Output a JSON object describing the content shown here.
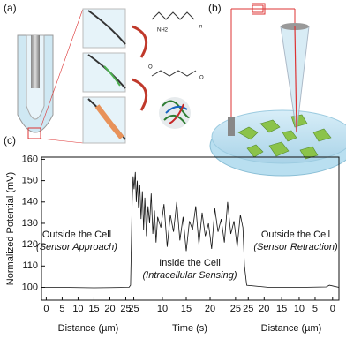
{
  "panels": {
    "a": "(a)",
    "b": "(b)"
  },
  "molecules": {
    "amine": "NH2",
    "repeat": "n",
    "oxygen1": "O",
    "oxygen2": "O"
  },
  "chart_data": {
    "type": "line",
    "panel": "(c)",
    "y_label": "Normalized Potential (mV)",
    "x_labels": [
      "Distance (µm)",
      "Time (s)",
      "Distance (µm)"
    ],
    "annotations": [
      "Outside the Cell",
      "(Sensor Approach)",
      "Inside the Cell",
      "(Intracellular Sensing)",
      "Outside the Cell",
      "(Sensor Retraction)"
    ],
    "color": "#111111",
    "xlim": [
      -1.5,
      92
    ],
    "ylim": [
      94,
      161
    ],
    "yticks": [
      100,
      110,
      120,
      130,
      140,
      150,
      160
    ],
    "xticks": [
      {
        "value": 0,
        "label": "0"
      },
      {
        "value": 5,
        "label": "5"
      },
      {
        "value": 10,
        "label": "10"
      },
      {
        "value": 15,
        "label": "15"
      },
      {
        "value": 20,
        "label": "20"
      },
      {
        "value": 25,
        "label": "25"
      },
      {
        "value": 27.5,
        "label": "25"
      },
      {
        "value": 36.5,
        "label": "10"
      },
      {
        "value": 44,
        "label": "15"
      },
      {
        "value": 51.5,
        "label": "20"
      },
      {
        "value": 59.5,
        "label": "25"
      },
      {
        "value": 63.5,
        "label": "25"
      },
      {
        "value": 68.5,
        "label": "20"
      },
      {
        "value": 74,
        "label": "15"
      },
      {
        "value": 79.5,
        "label": "10"
      },
      {
        "value": 84.5,
        "label": "5"
      },
      {
        "value": 90,
        "label": "0"
      }
    ],
    "x": [
      -1.5,
      5,
      15,
      26,
      26.5,
      27,
      27.3,
      27.6,
      28,
      28.3,
      28.6,
      29,
      29.4,
      29.8,
      30.2,
      30.6,
      31,
      31.5,
      32,
      32.5,
      33,
      33.5,
      34,
      34.5,
      35,
      36,
      37,
      38,
      39,
      40,
      41,
      42,
      43,
      44,
      45,
      46,
      47,
      48,
      49,
      50,
      51,
      52,
      53,
      54,
      55,
      56,
      57,
      58,
      59,
      60,
      61,
      61.8,
      62.3,
      63,
      70,
      80,
      88,
      89,
      92
    ],
    "values": [
      100,
      100,
      99.8,
      100,
      101,
      140,
      152,
      146,
      154,
      140,
      150,
      137,
      148,
      132,
      145,
      127,
      142,
      124,
      138,
      130,
      144,
      125,
      136,
      121,
      133,
      128,
      139,
      119,
      134,
      126,
      140,
      122,
      133,
      117,
      131,
      127,
      138,
      120,
      135,
      124,
      130,
      118,
      137,
      126,
      132,
      121,
      140,
      125,
      131,
      119,
      134,
      128,
      110,
      101,
      100,
      100,
      100.2,
      101,
      100
    ]
  }
}
